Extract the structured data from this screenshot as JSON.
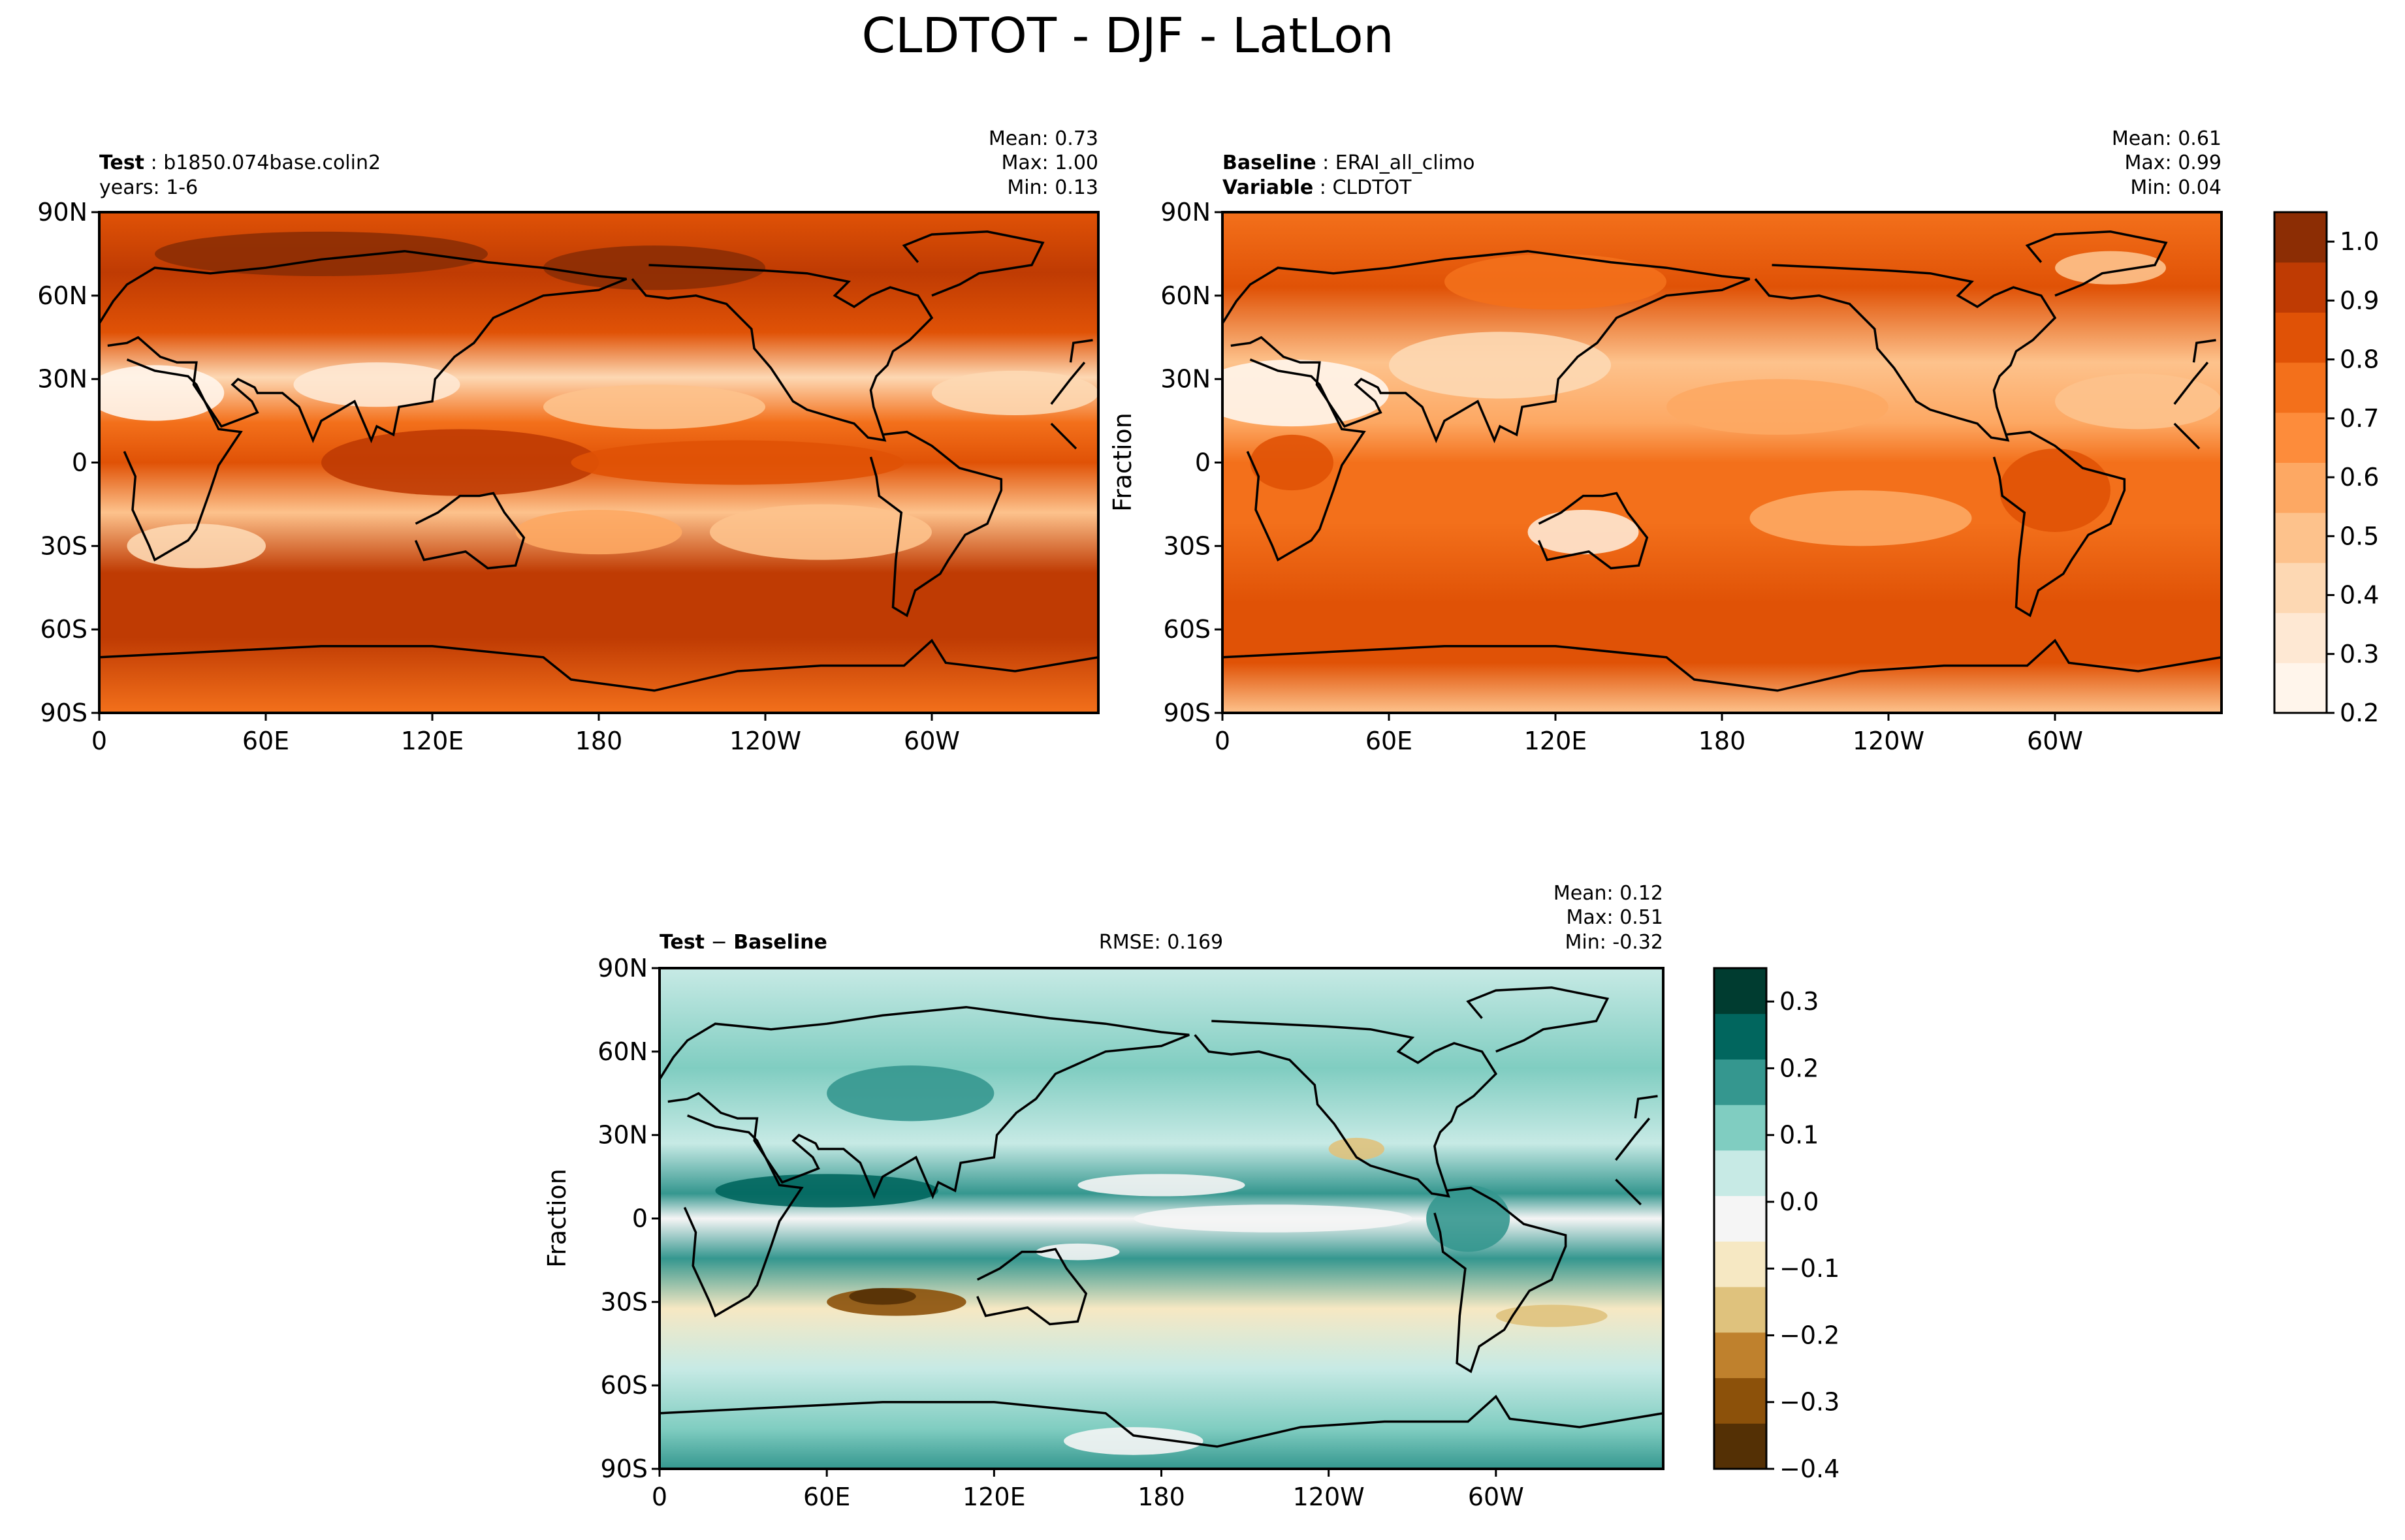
{
  "figure": {
    "suptitle": "CLDTOT - DJF - LatLon"
  },
  "chart_data": [
    {
      "type": "heatmap",
      "panel": "test",
      "label_bold": "Test",
      "label_value": "b1850.074base.colin2",
      "label_line2": "years: 1-6",
      "stats": {
        "mean": "Mean:  0.73",
        "max": "Max:  1.00",
        "min": "Min:  0.13"
      },
      "x_ticks": [
        "0",
        "60E",
        "120E",
        "180",
        "120W",
        "60W"
      ],
      "y_ticks": [
        "90N",
        "60N",
        "30N",
        "0",
        "30S",
        "60S",
        "90S"
      ],
      "xlim": [
        0,
        360
      ],
      "ylim": [
        -90,
        90
      ],
      "colormap": "Oranges",
      "ylabel": ""
    },
    {
      "type": "heatmap",
      "panel": "baseline",
      "label_bold": "Baseline",
      "label_value": "ERAI_all_climo",
      "label2_bold": "Variable",
      "label2_value": "CLDTOT",
      "stats": {
        "mean": "Mean:  0.61",
        "max": "Max:  0.99",
        "min": "Min:  0.04"
      },
      "x_ticks": [
        "0",
        "60E",
        "120E",
        "180",
        "120W",
        "60W"
      ],
      "y_ticks": [
        "90N",
        "60N",
        "30N",
        "0",
        "30S",
        "60S",
        "90S"
      ],
      "xlim": [
        0,
        360
      ],
      "ylim": [
        -90,
        90
      ],
      "colormap": "Oranges",
      "ylabel": "Fraction",
      "colorbar": {
        "ticks": [
          "1.0",
          "0.9",
          "0.8",
          "0.7",
          "0.6",
          "0.5",
          "0.4",
          "0.3",
          "0.2"
        ],
        "range": [
          0.2,
          1.05
        ]
      }
    },
    {
      "type": "heatmap",
      "panel": "difference",
      "label_bold": "Test",
      "label_minus": "−",
      "label_bold2": "Baseline",
      "rmse": "RMSE: 0.169",
      "stats": {
        "mean": "Mean:  0.12",
        "max": "Max:  0.51",
        "min": "Min: -0.32"
      },
      "x_ticks": [
        "0",
        "60E",
        "120E",
        "180",
        "120W",
        "60W"
      ],
      "y_ticks": [
        "90N",
        "60N",
        "30N",
        "0",
        "30S",
        "60S",
        "90S"
      ],
      "xlim": [
        0,
        360
      ],
      "ylim": [
        -90,
        90
      ],
      "colormap": "BrBG",
      "ylabel": "Fraction",
      "colorbar": {
        "ticks": [
          "0.3",
          "0.2",
          "0.1",
          "0.0",
          "−0.1",
          "−0.2",
          "−0.3",
          "−0.4"
        ],
        "range": [
          -0.4,
          0.35
        ]
      }
    }
  ],
  "colors": {
    "oranges": [
      "#fff5eb",
      "#fee8d3",
      "#fdd8b3",
      "#fdc28c",
      "#fda863",
      "#fd8c3b",
      "#f3701b",
      "#e05206",
      "#bf3b03",
      "#8c2d04"
    ],
    "brbg": [
      "#543005",
      "#8c510a",
      "#bf812d",
      "#dfc27d",
      "#f6e8c3",
      "#f5f5f5",
      "#c7eae5",
      "#80cdc1",
      "#35978f",
      "#01665e",
      "#003c30"
    ]
  }
}
